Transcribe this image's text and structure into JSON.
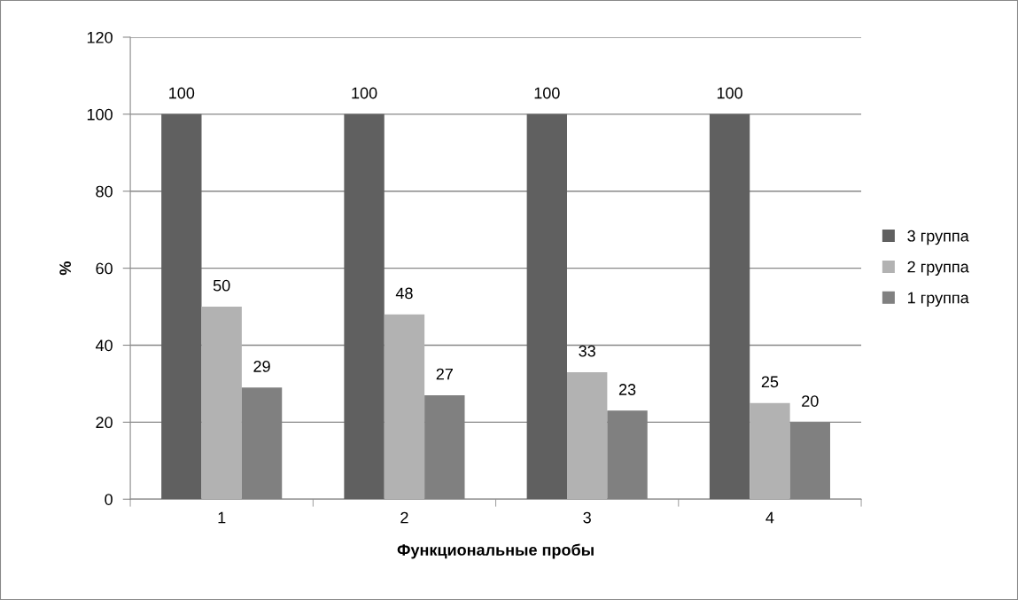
{
  "chart_data": {
    "type": "bar",
    "xlabel": "Функциональные пробы",
    "ylabel": "%",
    "categories": [
      "1",
      "2",
      "3",
      "4"
    ],
    "series": [
      {
        "name": "3 группа",
        "color": "#606060",
        "values": [
          100,
          100,
          100,
          100
        ]
      },
      {
        "name": "2 группа",
        "color": "#b2b2b2",
        "values": [
          50,
          48,
          33,
          25
        ]
      },
      {
        "name": "1 группа",
        "color": "#808080",
        "values": [
          29,
          27,
          23,
          20
        ]
      }
    ],
    "ylim": [
      0,
      120
    ],
    "yticks": [
      0,
      20,
      40,
      60,
      80,
      100,
      120
    ],
    "grid": "y",
    "legend": "right",
    "data_labels": true
  }
}
